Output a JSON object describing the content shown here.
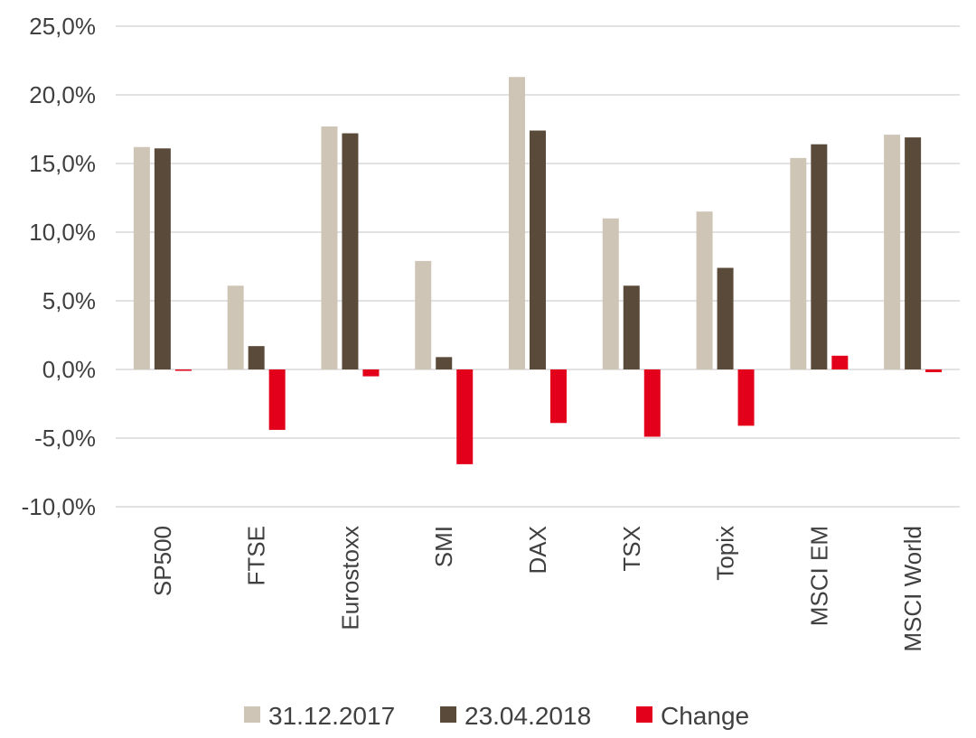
{
  "chart_data": {
    "type": "bar",
    "title": "",
    "xlabel": "",
    "ylabel": "",
    "categories": [
      "SP500",
      "FTSE",
      "Eurostoxx",
      "SMI",
      "DAX",
      "TSX",
      "Topix",
      "MSCI EM",
      "MSCI World"
    ],
    "series": [
      {
        "name": "31.12.2017",
        "color": "#cec5b6",
        "values": [
          16.2,
          6.1,
          17.7,
          7.9,
          21.3,
          11.0,
          11.5,
          15.4,
          17.1
        ]
      },
      {
        "name": "23.04.2018",
        "color": "#5a4a3a",
        "values": [
          16.1,
          1.7,
          17.2,
          0.9,
          17.4,
          6.1,
          7.4,
          16.4,
          16.9
        ]
      },
      {
        "name": "Change",
        "color": "#e2001a",
        "values": [
          -0.1,
          -4.4,
          -0.5,
          -6.9,
          -3.9,
          -4.9,
          -4.1,
          1.0,
          -0.2
        ]
      }
    ],
    "ylim": [
      -10,
      25
    ],
    "yticks": [
      -10,
      -5,
      0,
      5,
      10,
      15,
      20,
      25
    ],
    "ytick_labels": [
      "-10,0%",
      "-5,0%",
      "0,0%",
      "5,0%",
      "10,0%",
      "15,0%",
      "20,0%",
      "25,0%"
    ],
    "grid": true,
    "legend_position": "bottom",
    "colors": {
      "grid": "#d9d9d9",
      "text": "#404040"
    }
  }
}
